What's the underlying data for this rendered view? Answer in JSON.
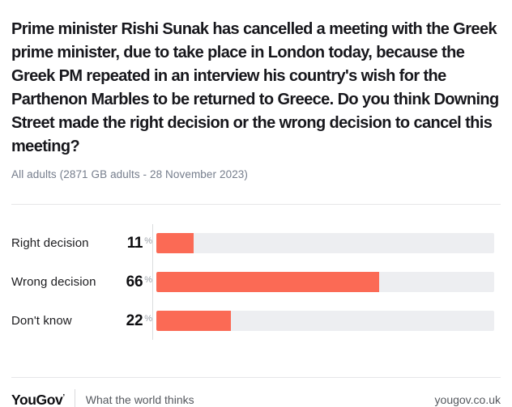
{
  "header": {
    "title": "Prime minister Rishi Sunak has cancelled a meeting with the Greek prime minister, due to take place in London today, because the Greek PM repeated in an interview his country's wish for the Parthenon Marbles to be returned to Greece. Do you think Downing Street made the right decision or the wrong decision to cancel this meeting?",
    "subtitle": "All adults (2871 GB adults - 28 November 2023)"
  },
  "chart_data": {
    "type": "bar",
    "orientation": "horizontal",
    "title": "Do you think Downing Street made the right decision or the wrong decision to cancel this meeting?",
    "categories": [
      "Right decision",
      "Wrong decision",
      "Don't know"
    ],
    "values": [
      11,
      66,
      22
    ],
    "unit": "%",
    "xlim": [
      0,
      100
    ],
    "grid": false,
    "legend": false,
    "colors": {
      "bar": "#FB6A55",
      "track": "#EDEEF1"
    }
  },
  "footer": {
    "logo": "YouGov",
    "logo_mark": "’",
    "tagline": "What the world thinks",
    "website": "yougov.co.uk"
  }
}
